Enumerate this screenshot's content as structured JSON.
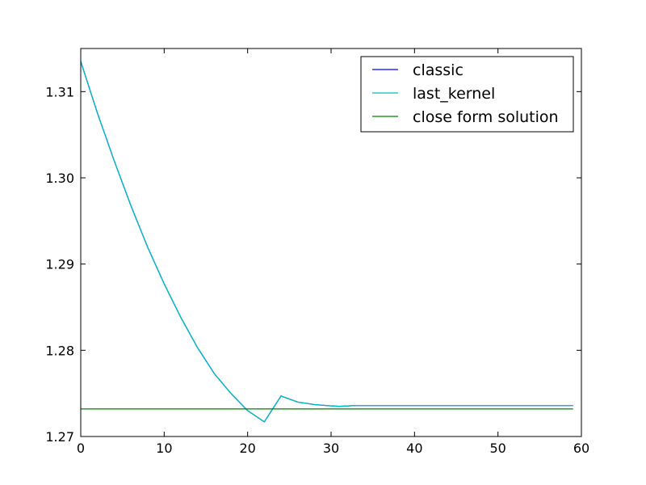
{
  "chart_data": {
    "type": "line",
    "title": "",
    "xlabel": "",
    "ylabel": "",
    "xlim": [
      0,
      60
    ],
    "ylim": [
      1.27,
      1.315
    ],
    "xticks": [
      0,
      10,
      20,
      30,
      40,
      50,
      60
    ],
    "xtick_labels": [
      "0",
      "10",
      "20",
      "30",
      "40",
      "50",
      "60"
    ],
    "yticks": [
      1.27,
      1.28,
      1.29,
      1.3,
      1.31
    ],
    "ytick_labels": [
      "1.27",
      "1.28",
      "1.29",
      "1.30",
      "1.31"
    ],
    "grid": false,
    "legend_position": "top-right",
    "series": [
      {
        "name": "classic",
        "color": "#0000ff",
        "x": [
          0,
          2,
          4,
          6,
          8,
          10,
          12,
          14,
          16,
          18,
          20,
          22,
          24,
          26,
          28,
          30,
          31,
          33,
          35,
          40,
          45,
          50,
          55,
          59
        ],
        "y": [
          1.3135,
          1.3075,
          1.302,
          1.2968,
          1.292,
          1.2877,
          1.2838,
          1.2803,
          1.2773,
          1.275,
          1.273,
          1.2717,
          1.2747,
          1.274,
          1.2737,
          1.27355,
          1.2735,
          1.2736,
          1.2736,
          1.2736,
          1.2736,
          1.2736,
          1.2736,
          1.2736
        ]
      },
      {
        "name": "last_kernel",
        "color": "#00bfbf",
        "x": [
          0,
          2,
          4,
          6,
          8,
          10,
          12,
          14,
          16,
          18,
          20,
          22,
          24,
          26,
          28,
          30,
          31,
          33,
          35,
          40,
          45,
          50,
          55,
          59
        ],
        "y": [
          1.3135,
          1.3075,
          1.302,
          1.2968,
          1.292,
          1.2877,
          1.2838,
          1.2803,
          1.2773,
          1.275,
          1.273,
          1.2717,
          1.2747,
          1.274,
          1.2737,
          1.27355,
          1.2735,
          1.2736,
          1.2736,
          1.2736,
          1.2736,
          1.2736,
          1.2736,
          1.2736
        ]
      },
      {
        "name": "close form solution",
        "color": "#008000",
        "x": [
          0,
          59
        ],
        "y": [
          1.2732,
          1.2732
        ]
      }
    ]
  }
}
